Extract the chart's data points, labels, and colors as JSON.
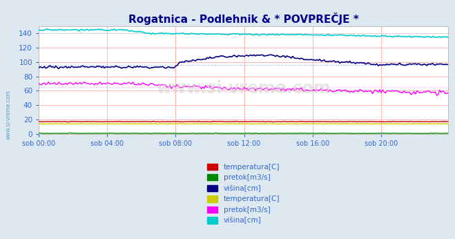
{
  "title": "Rogatnica - Podlehnik & * POVPREČJE *",
  "title_color": "#00008B",
  "bg_color": "#dde8f0",
  "plot_bg_color": "#ffffff",
  "grid_color": "#ffaaaa",
  "watermark": "www.si-vreme.com",
  "xlim": [
    0,
    287
  ],
  "ylim": [
    0,
    150
  ],
  "yticks": [
    0,
    20,
    40,
    60,
    80,
    100,
    120,
    140
  ],
  "xtick_labels": [
    "sob 00:00",
    "sob 04:00",
    "sob 08:00",
    "sob 12:00",
    "sob 16:00",
    "sob 20:00"
  ],
  "xtick_positions": [
    0,
    48,
    96,
    144,
    192,
    240
  ],
  "n_points": 288,
  "hline_rog_visina_y": 96,
  "hline_rog_visina_color": "#aaaaff",
  "hline_avg_pretok_y": 65,
  "hline_avg_pretok_color": "#ffaaff",
  "hline_avg_visina_y": 140,
  "hline_avg_visina_color": "#aaffff",
  "hline_rog_temp_y": 17,
  "hline_rog_temp_color": "#ffaaaa",
  "hline_avg_temp_y": 14,
  "hline_avg_temp_color": "#ffffaa",
  "colors": {
    "rog_temp": "#cc0000",
    "rog_pretok": "#008800",
    "rog_visina": "#000080",
    "avg_temp": "#cccc00",
    "avg_pretok": "#ff00ff",
    "avg_visina": "#00cccc"
  },
  "legend1": [
    {
      "label": "temperatura[C]",
      "color": "#cc0000"
    },
    {
      "label": "pretok[m3/s]",
      "color": "#008800"
    },
    {
      "label": "višina[cm]",
      "color": "#000080"
    }
  ],
  "legend2": [
    {
      "label": "temperatura[C]",
      "color": "#cccc00"
    },
    {
      "label": "pretok[m3/s]",
      "color": "#ff00ff"
    },
    {
      "label": "višina[cm]",
      "color": "#00cccc"
    }
  ],
  "ylabel_color": "#3366cc",
  "watermark_color": "#3399cc"
}
